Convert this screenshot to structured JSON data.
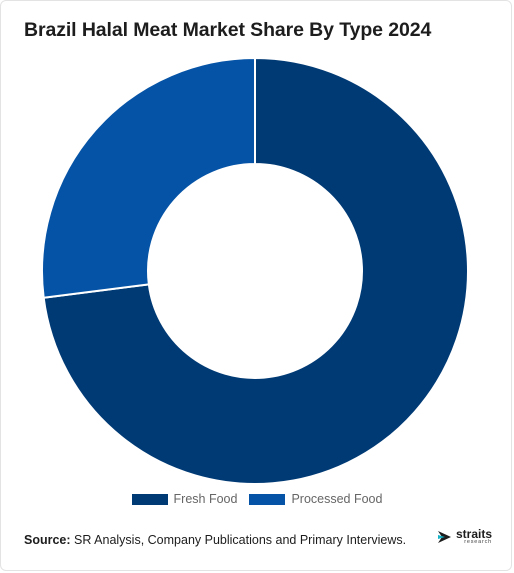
{
  "header": {
    "title": "Brazil Halal Meat Market Share By Type 2024"
  },
  "chart_data": {
    "type": "pie",
    "variant": "donut",
    "title": "Brazil Halal Meat Market Share By Type 2024",
    "categories": [
      "Fresh Food",
      "Processed Food"
    ],
    "values": [
      73,
      27
    ],
    "colors": [
      "#003a75",
      "#0553a6"
    ],
    "legend_position": "bottom"
  },
  "legend": {
    "items": [
      {
        "label": "Fresh Food",
        "color": "#003a75"
      },
      {
        "label": "Processed Food",
        "color": "#0553a6"
      }
    ]
  },
  "footer": {
    "source_label": "Source:",
    "source_text": " SR Analysis, Company Publications and Primary Interviews.",
    "logo_name": "straits",
    "logo_sub": "research",
    "logo_icon": "straits-arrow-icon"
  }
}
